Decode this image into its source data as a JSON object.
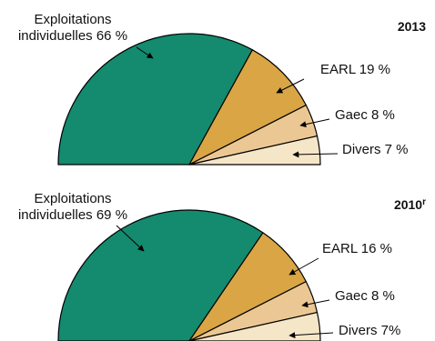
{
  "chart_data": [
    {
      "type": "pie",
      "title": "2013",
      "unit": "%",
      "colors": [
        "#148a6e",
        "#d9a545",
        "#ebc893",
        "#f6e6c8"
      ],
      "slices": [
        {
          "label_line1": "Exploitations",
          "label_line2": "individuelles 66 %",
          "value": 66
        },
        {
          "label_line1": "EARL 19 %",
          "label_line2": "",
          "value": 19
        },
        {
          "label_line1": "Gaec 8 %",
          "label_line2": "",
          "value": 8
        },
        {
          "label_line1": "Divers 7 %",
          "label_line2": "",
          "value": 7
        }
      ]
    },
    {
      "type": "pie",
      "title": "2010",
      "title_suffix": "r",
      "unit": "%",
      "colors": [
        "#148a6e",
        "#d9a545",
        "#ebc893",
        "#f6e6c8"
      ],
      "slices": [
        {
          "label_line1": "Exploitations",
          "label_line2": "individuelles 69 %",
          "value": 69
        },
        {
          "label_line1": "EARL 16 %",
          "label_line2": "",
          "value": 16
        },
        {
          "label_line1": "Gaec 8 %",
          "label_line2": "",
          "value": 8
        },
        {
          "label_line1": "Divers 7%",
          "label_line2": "",
          "value": 7
        }
      ]
    }
  ]
}
